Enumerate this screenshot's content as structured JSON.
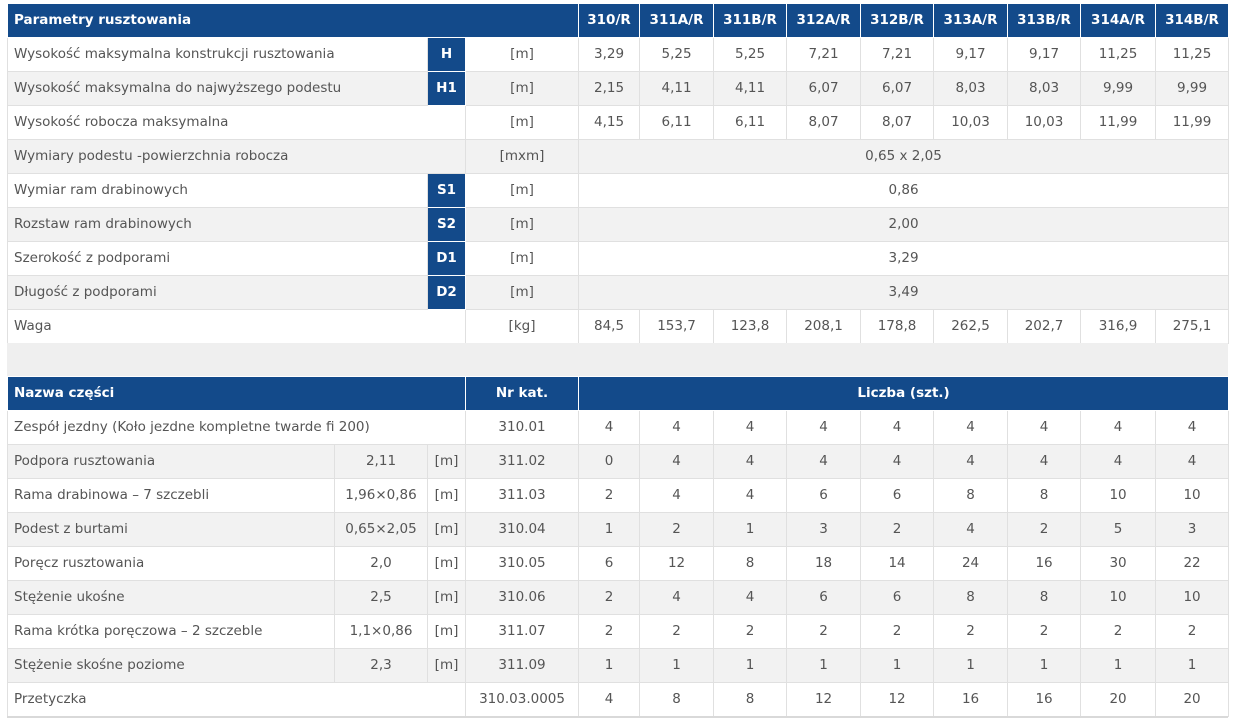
{
  "spec": {
    "header": {
      "title": "Parametry rusztowania",
      "models": [
        "310/R",
        "311A/R",
        "311B/R",
        "312A/R",
        "312B/R",
        "313A/R",
        "313B/R",
        "314A/R",
        "314B/R"
      ]
    },
    "rows": [
      {
        "label": "Wysokość maksymalna konstrukcji rusztowania",
        "symbol": "H",
        "unit": "[m]",
        "values": [
          "3,29",
          "5,25",
          "5,25",
          "7,21",
          "7,21",
          "9,17",
          "9,17",
          "11,25",
          "11,25"
        ]
      },
      {
        "label": "Wysokość maksymalna do najwyższego podestu",
        "symbol": "H1",
        "unit": "[m]",
        "values": [
          "2,15",
          "4,11",
          "4,11",
          "6,07",
          "6,07",
          "8,03",
          "8,03",
          "9,99",
          "9,99"
        ]
      },
      {
        "label": "Wysokość robocza maksymalna",
        "symbol": "",
        "unit": "[m]",
        "values": [
          "4,15",
          "6,11",
          "6,11",
          "8,07",
          "8,07",
          "10,03",
          "10,03",
          "11,99",
          "11,99"
        ]
      },
      {
        "label": "Wymiary podestu -powierzchnia robocza",
        "symbol": "",
        "unit": "[mxm]",
        "value": "0,65 x 2,05"
      },
      {
        "label": "Wymiar ram drabinowych",
        "symbol": "S1",
        "unit": "[m]",
        "value": "0,86"
      },
      {
        "label": "Rozstaw ram drabinowych",
        "symbol": "S2",
        "unit": "[m]",
        "value": "2,00"
      },
      {
        "label": "Szerokość z podporami",
        "symbol": "D1",
        "unit": "[m]",
        "value": "3,29"
      },
      {
        "label": "Długość z podporami",
        "symbol": "D2",
        "unit": "[m]",
        "value": "3,49"
      },
      {
        "label": "Waga",
        "symbol": "",
        "unit": "[kg]",
        "values": [
          "84,5",
          "153,7",
          "123,8",
          "208,1",
          "178,8",
          "262,5",
          "202,7",
          "316,9",
          "275,1"
        ]
      }
    ]
  },
  "parts": {
    "header": {
      "name": "Nazwa części",
      "catalog": "Nr kat.",
      "count": "Liczba (szt.)"
    },
    "rows": [
      {
        "name": "Zespół jezdny (Koło jezdne kompletne twarde fi 200)",
        "size": "",
        "unit": "",
        "cat": "310.01",
        "counts": [
          "4",
          "4",
          "4",
          "4",
          "4",
          "4",
          "4",
          "4",
          "4"
        ]
      },
      {
        "name": "Podpora rusztowania",
        "size": "2,11",
        "unit": "[m]",
        "cat": "311.02",
        "counts": [
          "0",
          "4",
          "4",
          "4",
          "4",
          "4",
          "4",
          "4",
          "4"
        ]
      },
      {
        "name": "Rama drabinowa – 7 szczebli",
        "size": "1,96×0,86",
        "unit": "[m]",
        "cat": "311.03",
        "counts": [
          "2",
          "4",
          "4",
          "6",
          "6",
          "8",
          "8",
          "10",
          "10"
        ]
      },
      {
        "name": "Podest z burtami",
        "size": "0,65×2,05",
        "unit": "[m]",
        "cat": "310.04",
        "counts": [
          "1",
          "2",
          "1",
          "3",
          "2",
          "4",
          "2",
          "5",
          "3"
        ]
      },
      {
        "name": "Poręcz rusztowania",
        "size": "2,0",
        "unit": "[m]",
        "cat": "310.05",
        "counts": [
          "6",
          "12",
          "8",
          "18",
          "14",
          "24",
          "16",
          "30",
          "22"
        ]
      },
      {
        "name": "Stężenie ukośne",
        "size": "2,5",
        "unit": "[m]",
        "cat": "310.06",
        "counts": [
          "2",
          "4",
          "4",
          "6",
          "6",
          "8",
          "8",
          "10",
          "10"
        ]
      },
      {
        "name": "Rama krótka poręczowa – 2 szczeble",
        "size": "1,1×0,86",
        "unit": "[m]",
        "cat": "311.07",
        "counts": [
          "2",
          "2",
          "2",
          "2",
          "2",
          "2",
          "2",
          "2",
          "2"
        ]
      },
      {
        "name": "Stężenie skośne poziome",
        "size": "2,3",
        "unit": "[m]",
        "cat": "311.09",
        "counts": [
          "1",
          "1",
          "1",
          "1",
          "1",
          "1",
          "1",
          "1",
          "1"
        ]
      },
      {
        "name": "Przetyczka",
        "size": "",
        "unit": "",
        "cat": "310.03.0005",
        "counts": [
          "4",
          "8",
          "8",
          "12",
          "12",
          "16",
          "16",
          "20",
          "20"
        ]
      }
    ]
  },
  "colors": {
    "header_bg": "#134a8a",
    "stripe": "#f2f2f2"
  }
}
